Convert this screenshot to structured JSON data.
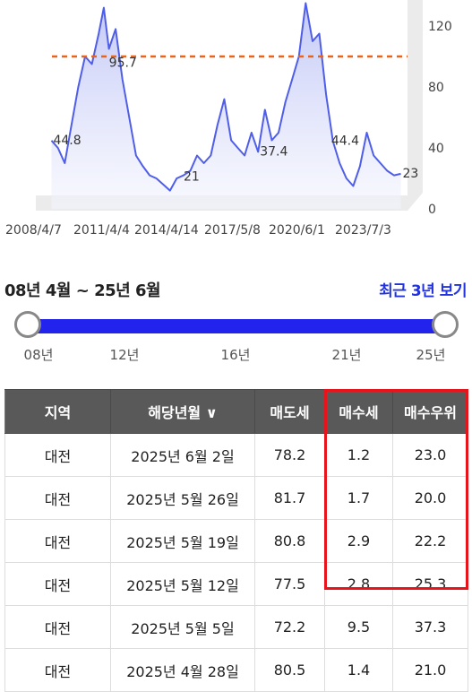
{
  "chart_data": {
    "type": "area",
    "x_tick_labels": [
      "2008/4/7",
      "2011/4/4",
      "2014/4/14",
      "2017/5/8",
      "2020/6/1",
      "2023/7/3"
    ],
    "y_ticks": [
      0,
      40,
      80,
      120
    ],
    "ylim": [
      0,
      140
    ],
    "reference_line": 100,
    "annotations": [
      {
        "date": "2008-04-07",
        "value": 44.8,
        "text": "44.8"
      },
      {
        "date": "2011-01-01",
        "value": 95.7,
        "text": "95.7"
      },
      {
        "date": "2014-09-01",
        "value": 21,
        "text": "21"
      },
      {
        "date": "2018-06-01",
        "value": 37.4,
        "text": "37.4"
      },
      {
        "date": "2021-12-01",
        "value": 44.4,
        "text": "44.4"
      },
      {
        "date": "2025-06-02",
        "value": 23,
        "text": "23"
      }
    ],
    "series": [
      {
        "points": [
          [
            "2008-04-07",
            44.8
          ],
          [
            "2008-08-01",
            40
          ],
          [
            "2008-12-01",
            30
          ],
          [
            "2009-04-01",
            55
          ],
          [
            "2009-08-01",
            80
          ],
          [
            "2009-12-01",
            100
          ],
          [
            "2010-04-01",
            95
          ],
          [
            "2010-08-01",
            115
          ],
          [
            "2010-11-01",
            132
          ],
          [
            "2011-02-01",
            105
          ],
          [
            "2011-06-01",
            118
          ],
          [
            "2011-10-01",
            85
          ],
          [
            "2012-02-01",
            60
          ],
          [
            "2012-06-01",
            35
          ],
          [
            "2012-10-01",
            28
          ],
          [
            "2013-02-01",
            22
          ],
          [
            "2013-06-01",
            20
          ],
          [
            "2013-10-01",
            16
          ],
          [
            "2014-02-01",
            12
          ],
          [
            "2014-06-01",
            20
          ],
          [
            "2014-10-01",
            22
          ],
          [
            "2015-02-01",
            25
          ],
          [
            "2015-06-01",
            35
          ],
          [
            "2015-10-01",
            30
          ],
          [
            "2016-02-01",
            35
          ],
          [
            "2016-06-01",
            55
          ],
          [
            "2016-10-01",
            72
          ],
          [
            "2017-02-01",
            45
          ],
          [
            "2017-06-01",
            40
          ],
          [
            "2017-10-01",
            35
          ],
          [
            "2018-02-01",
            50
          ],
          [
            "2018-06-01",
            37.4
          ],
          [
            "2018-10-01",
            65
          ],
          [
            "2019-02-01",
            45
          ],
          [
            "2019-06-01",
            50
          ],
          [
            "2019-10-01",
            70
          ],
          [
            "2020-02-01",
            85
          ],
          [
            "2020-06-01",
            100
          ],
          [
            "2020-10-01",
            135
          ],
          [
            "2021-02-01",
            110
          ],
          [
            "2021-06-01",
            115
          ],
          [
            "2021-10-01",
            75
          ],
          [
            "2022-02-01",
            44.4
          ],
          [
            "2022-06-01",
            30
          ],
          [
            "2022-10-01",
            20
          ],
          [
            "2023-02-01",
            15
          ],
          [
            "2023-06-01",
            28
          ],
          [
            "2023-10-01",
            50
          ],
          [
            "2024-02-01",
            35
          ],
          [
            "2024-06-01",
            30
          ],
          [
            "2024-10-01",
            25
          ],
          [
            "2025-02-01",
            22
          ],
          [
            "2025-06-02",
            23
          ]
        ]
      }
    ],
    "colors": {
      "line": "#4f5ee8",
      "reference": "#e8641b"
    }
  },
  "range": {
    "title": "08년 4월 ~ 25년 6월",
    "recent_link": "최근 3년 보기",
    "ticks": [
      "08년",
      "12년",
      "16년",
      "21년",
      "25년"
    ],
    "min_year": 2008.27,
    "max_year": 2025.42,
    "low_value": 2008.27,
    "high_value": 2025.42
  },
  "table": {
    "headers": [
      "지역",
      "해당년월",
      "매도세",
      "매수세",
      "매수우위"
    ],
    "sort_icon": "chevron-down-icon",
    "sort_glyph": "∨",
    "rows": [
      [
        "대전",
        "2025년 6월 2일",
        "78.2",
        "1.2",
        "23.0"
      ],
      [
        "대전",
        "2025년 5월 26일",
        "81.7",
        "1.7",
        "20.0"
      ],
      [
        "대전",
        "2025년 5월 19일",
        "80.8",
        "2.9",
        "22.2"
      ],
      [
        "대전",
        "2025년 5월 12일",
        "77.5",
        "2.8",
        "25.3"
      ],
      [
        "대전",
        "2025년 5월 5일",
        "72.2",
        "9.5",
        "37.3"
      ],
      [
        "대전",
        "2025년 4월 28일",
        "80.5",
        "1.4",
        "21.0"
      ]
    ]
  },
  "highlight": {
    "color": "#e8141b"
  }
}
